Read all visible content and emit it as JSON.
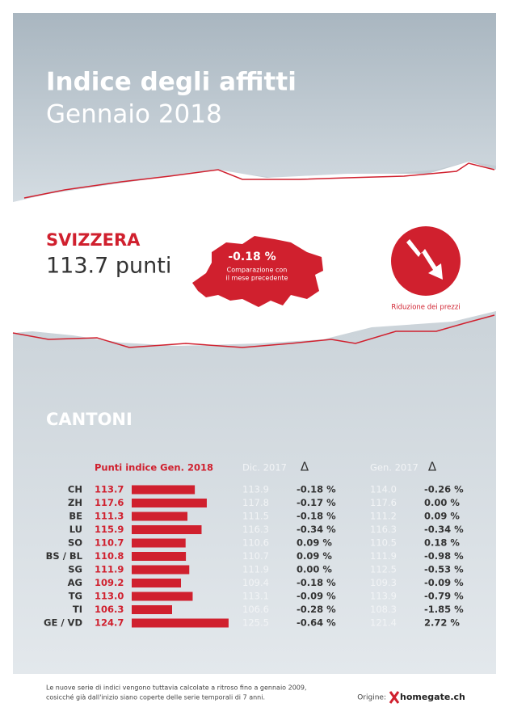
{
  "header": {
    "title": "Indice degli affitti",
    "subtitle": "Gennaio 2018"
  },
  "national": {
    "label": "SVIZZERA",
    "value": "113.7 punti",
    "change": "-0.18 %",
    "change_note": [
      "Comparazione con",
      "il mese precedente"
    ],
    "trend_label": "Riduzione dei prezzi"
  },
  "cantons": {
    "title": "CANTONI",
    "columns": [
      "Punti indice Gen. 2018",
      "Dic. 2017",
      "Δ",
      "Gen. 2017",
      "Δ"
    ],
    "rows": [
      {
        "canton": "CH",
        "index": 113.7,
        "dec2017": "113.9",
        "delta_month": "-0.18 %",
        "jan2017": "114.0",
        "delta_year": "-0.26 %"
      },
      {
        "canton": "ZH",
        "index": 117.6,
        "dec2017": "117.8",
        "delta_month": "-0.17 %",
        "jan2017": "117.6",
        "delta_year": "0.00 %"
      },
      {
        "canton": "BE",
        "index": 111.3,
        "dec2017": "111.5",
        "delta_month": "-0.18 %",
        "jan2017": "111.2",
        "delta_year": "0.09 %"
      },
      {
        "canton": "LU",
        "index": 115.9,
        "dec2017": "116.3",
        "delta_month": "-0.34 %",
        "jan2017": "116.3",
        "delta_year": "-0.34 %"
      },
      {
        "canton": "SO",
        "index": 110.7,
        "dec2017": "110.6",
        "delta_month": "0.09 %",
        "jan2017": "110.5",
        "delta_year": "0.18 %"
      },
      {
        "canton": "BS / BL",
        "index": 110.8,
        "dec2017": "110.7",
        "delta_month": "0.09 %",
        "jan2017": "111.9",
        "delta_year": "-0.98 %"
      },
      {
        "canton": "SG",
        "index": 111.9,
        "dec2017": "111.9",
        "delta_month": "0.00 %",
        "jan2017": "112.5",
        "delta_year": "-0.53 %"
      },
      {
        "canton": "AG",
        "index": 109.2,
        "dec2017": "109.4",
        "delta_month": "-0.18 %",
        "jan2017": "109.3",
        "delta_year": "-0.09 %"
      },
      {
        "canton": "TG",
        "index": {
          "value": 113,
          "label": "113.0"
        },
        "dec2017": "113.1",
        "delta_month": "-0.09 %",
        "jan2017": "113.9",
        "delta_year": "-0.79 %"
      },
      {
        "canton": "TI",
        "index": 106.3,
        "dec2017": "106.6",
        "delta_month": "-0.28 %",
        "jan2017": "108.3",
        "delta_year": "-1.85 %"
      },
      {
        "canton": "GE / VD",
        "index": 124.7,
        "dec2017": "125.5",
        "delta_month": "-0.64 %",
        "jan2017": "121.4",
        "delta_year": "2.72 %"
      }
    ]
  },
  "footer": {
    "note": [
      "Le nuove serie di indici vengono tuttavia calcolate a ritroso fino a gennaio 2009,",
      "cosicché già dall'inizio siano coperte delle serie temporali di 7 anni."
    ],
    "source_label": "Origine:",
    "source": "homegate.ch"
  }
}
